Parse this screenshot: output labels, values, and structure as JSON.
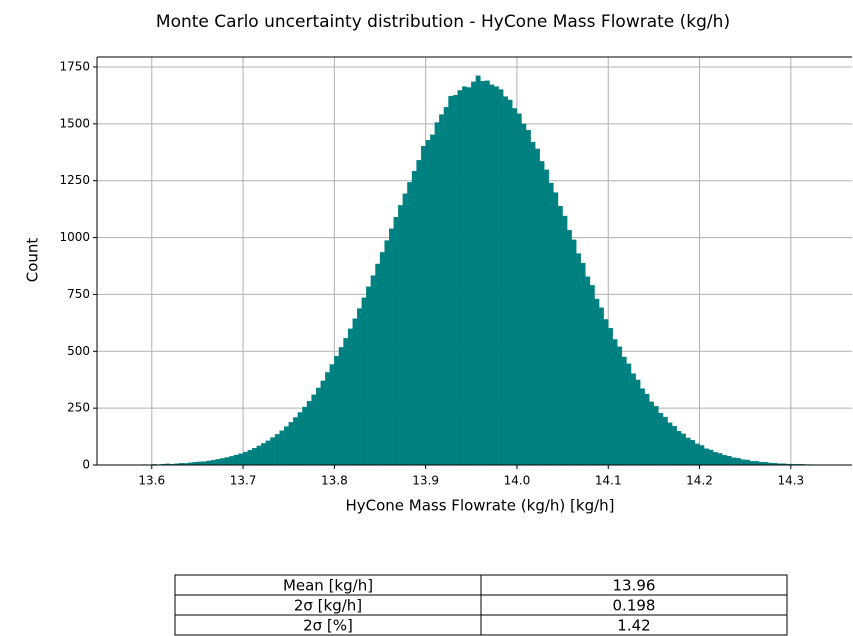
{
  "chart_data": {
    "type": "histogram",
    "title": "Monte Carlo uncertainty distribution - HyCone Mass Flowrate (kg/h)",
    "xlabel": "HyCone Mass Flowrate (kg/h) [kg/h]",
    "ylabel": "Count",
    "color": "#008080",
    "grid": true,
    "bins": [
      13.585,
      13.59,
      13.595,
      13.6,
      13.605,
      13.61,
      13.615,
      13.62,
      13.625,
      13.63,
      13.635,
      13.64,
      13.645,
      13.65,
      13.655,
      13.66,
      13.665,
      13.67,
      13.675,
      13.68,
      13.685,
      13.69,
      13.695,
      13.7,
      13.705,
      13.71,
      13.715,
      13.72,
      13.725,
      13.73,
      13.735,
      13.74,
      13.745,
      13.75,
      13.755,
      13.76,
      13.765,
      13.77,
      13.775,
      13.78,
      13.785,
      13.79,
      13.795,
      13.8,
      13.805,
      13.81,
      13.815,
      13.82,
      13.825,
      13.83,
      13.835,
      13.84,
      13.845,
      13.85,
      13.855,
      13.86,
      13.865,
      13.87,
      13.875,
      13.88,
      13.885,
      13.89,
      13.895,
      13.9,
      13.905,
      13.91,
      13.915,
      13.92,
      13.925,
      13.93,
      13.935,
      13.94,
      13.945,
      13.95,
      13.955,
      13.96,
      13.965,
      13.97,
      13.975,
      13.98,
      13.985,
      13.99,
      13.995,
      14.0,
      14.005,
      14.01,
      14.015,
      14.02,
      14.025,
      14.03,
      14.035,
      14.04,
      14.045,
      14.05,
      14.055,
      14.06,
      14.065,
      14.07,
      14.075,
      14.08,
      14.085,
      14.09,
      14.095,
      14.1,
      14.105,
      14.11,
      14.115,
      14.12,
      14.125,
      14.13,
      14.135,
      14.14,
      14.145,
      14.15,
      14.155,
      14.16,
      14.165,
      14.17,
      14.175,
      14.18,
      14.185,
      14.19,
      14.195,
      14.2,
      14.205,
      14.21,
      14.215,
      14.22,
      14.225,
      14.23,
      14.235,
      14.24,
      14.245,
      14.25,
      14.255,
      14.26,
      14.265,
      14.27,
      14.275,
      14.28,
      14.285,
      14.29,
      14.295,
      14.3,
      14.305,
      14.31,
      14.315,
      14.32,
      14.325,
      14.33,
      14.335
    ],
    "values": [
      1,
      2,
      1,
      3,
      2,
      4,
      5,
      4,
      6,
      8,
      7,
      10,
      12,
      14,
      15,
      18,
      21,
      25,
      29,
      33,
      38,
      44,
      50,
      57,
      65,
      74,
      84,
      95,
      107,
      121,
      135,
      151,
      169,
      188,
      209,
      231,
      255,
      281,
      309,
      339,
      370,
      407,
      442,
      479,
      517,
      557,
      599,
      643,
      688,
      735,
      784,
      833,
      884,
      935,
      987,
      1039,
      1090,
      1142,
      1193,
      1243,
      1292,
      1340,
      1402,
      1428,
      1452,
      1506,
      1541,
      1573,
      1622,
      1626,
      1647,
      1664,
      1660,
      1685,
      1712,
      1688,
      1690,
      1672,
      1664,
      1651,
      1620,
      1605,
      1568,
      1545,
      1500,
      1472,
      1420,
      1390,
      1335,
      1298,
      1240,
      1198,
      1138,
      1095,
      1032,
      990,
      930,
      888,
      828,
      790,
      730,
      692,
      640,
      602,
      552,
      520,
      475,
      445,
      402,
      374,
      336,
      312,
      278,
      258,
      228,
      211,
      186,
      171,
      149,
      137,
      119,
      109,
      93,
      86,
      72,
      66,
      56,
      51,
      43,
      39,
      32,
      30,
      24,
      22,
      17,
      16,
      13,
      12,
      9,
      8,
      6,
      6,
      4,
      4,
      3,
      3,
      2,
      2,
      1,
      1
    ],
    "xlim": [
      13.54,
      14.367
    ],
    "ylim": [
      0,
      1794
    ],
    "xticks": [
      13.6,
      13.7,
      13.8,
      13.9,
      {
        "value": 14,
        "label": "14.0"
      },
      14.1,
      14.2,
      14.3
    ],
    "yticks": [
      0,
      250,
      500,
      750,
      1000,
      1250,
      1500,
      1750
    ]
  },
  "table": {
    "rows": [
      [
        "Mean [kg/h]",
        "13.96"
      ],
      [
        "2σ [kg/h]",
        "0.198"
      ],
      [
        "2σ [%]",
        "1.42"
      ]
    ]
  }
}
